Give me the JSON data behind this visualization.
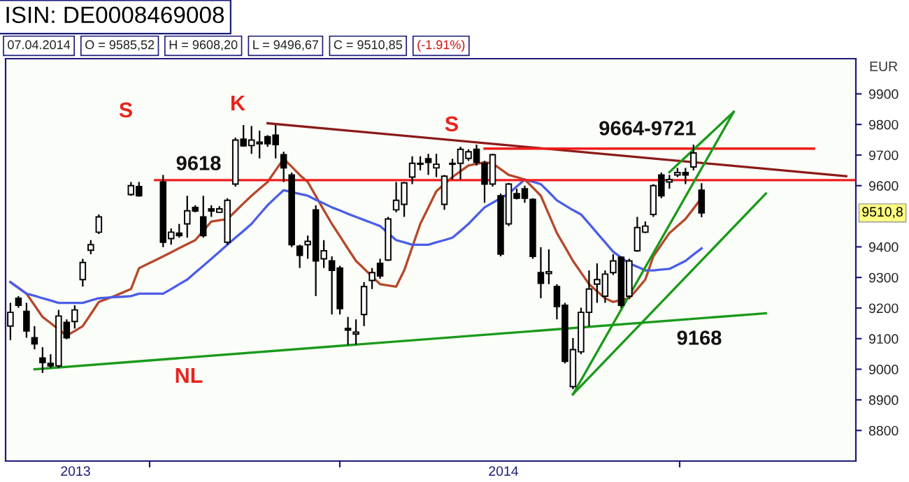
{
  "chart_data": {
    "type": "candlestick",
    "title": "ISIN: DE0008469008",
    "ylabel": "EUR",
    "annotations": [
      "07.04.2014",
      "O = 9585,52",
      "H = 9608,20",
      "L = 9496,67",
      "C = 9510,85",
      "(-1.91%)",
      "S",
      "K",
      "S",
      "9618",
      "9664-9721",
      "9168",
      "NL",
      "2013",
      "2014",
      {
        "text": "9510,8",
        "y": 9510.8
      }
    ],
    "categories": [
      null,
      null,
      null,
      null,
      null,
      null,
      null,
      null,
      null,
      null,
      null,
      null,
      null,
      null,
      null,
      null,
      null,
      null,
      null,
      null,
      null,
      null,
      null,
      null,
      null,
      null,
      null,
      null,
      null,
      null,
      null,
      null,
      null,
      null,
      null,
      null,
      null,
      null,
      null,
      null,
      null,
      null,
      null,
      null,
      null,
      null,
      null,
      null,
      null,
      null,
      null,
      null,
      null,
      null,
      null,
      null,
      null,
      null,
      null,
      null,
      null,
      null,
      null,
      null,
      null,
      null,
      null,
      null,
      null,
      null,
      null,
      null,
      null,
      null,
      null,
      null,
      null,
      null,
      null,
      null,
      null,
      null,
      null,
      null,
      null,
      null,
      null,
      null,
      null,
      null,
      null,
      null,
      null,
      null,
      null,
      null,
      null,
      null,
      null,
      null,
      null,
      null,
      null,
      null,
      null,
      null
    ],
    "ohlc": [
      [
        9141,
        9217,
        9095,
        9186
      ],
      [
        9232,
        9239,
        9201,
        9209
      ],
      [
        9189,
        9217,
        9103,
        9125
      ],
      [
        9103,
        9141,
        9065,
        9083
      ],
      [
        9037,
        9072,
        8988,
        9022
      ],
      [
        9019,
        9049,
        9004,
        9011
      ],
      [
        9011,
        9194,
        9004,
        9174
      ],
      [
        9153,
        9163,
        9098,
        9103
      ],
      [
        9156,
        9209,
        9133,
        9194
      ],
      [
        9293,
        9361,
        9270,
        9349
      ],
      [
        9389,
        9422,
        9376,
        9407
      ],
      [
        9448,
        9506,
        9442,
        9498
      ],
      null,
      null,
      null,
      [
        9571,
        9612,
        9567,
        9600
      ],
      [
        9597,
        9612,
        9564,
        9567
      ],
      null,
      null,
      [
        9612,
        9635,
        9399,
        9415
      ],
      [
        9427,
        9460,
        9407,
        9448
      ],
      [
        9445,
        9475,
        9430,
        9437
      ],
      [
        9475,
        9567,
        9430,
        9518
      ],
      [
        9529,
        9536,
        9513,
        9517
      ],
      [
        9498,
        9567,
        9430,
        9437
      ],
      [
        9524,
        9536,
        9498,
        9517
      ],
      [
        9513,
        9533,
        9513,
        9524
      ],
      [
        9415,
        9559,
        9407,
        9552
      ],
      [
        9605,
        9757,
        9597,
        9749
      ],
      [
        9752,
        9798,
        9727,
        9730
      ],
      [
        9731,
        9795,
        9704,
        9749
      ],
      [
        9737,
        9780,
        9689,
        9742
      ],
      [
        9760,
        9765,
        9727,
        9737
      ],
      [
        9765,
        9798,
        9689,
        9734
      ],
      [
        9701,
        9711,
        9612,
        9658
      ],
      [
        9635,
        9643,
        9399,
        9407
      ],
      [
        9402,
        9407,
        9331,
        9372
      ],
      [
        9407,
        9437,
        9361,
        9418
      ],
      [
        9521,
        9536,
        9239,
        9354
      ],
      [
        9361,
        9422,
        9331,
        9387
      ],
      [
        9354,
        9369,
        9179,
        9323
      ],
      [
        9331,
        9338,
        9179,
        9198
      ],
      [
        9133,
        9171,
        9080,
        9128
      ],
      [
        9115,
        9163,
        9080,
        9121
      ],
      [
        9179,
        9285,
        9141,
        9270
      ],
      [
        9290,
        9331,
        9262,
        9316
      ],
      [
        9346,
        9361,
        9296,
        9305
      ],
      [
        9357,
        9498,
        9354,
        9491
      ],
      [
        9521,
        9612,
        9513,
        9552
      ],
      [
        9539,
        9612,
        9498,
        9609
      ],
      [
        9628,
        9696,
        9605,
        9673
      ],
      [
        9673,
        9696,
        9650,
        9670
      ],
      [
        9688,
        9704,
        9635,
        9676
      ],
      [
        9658,
        9704,
        9628,
        9670
      ],
      [
        9539,
        9635,
        9521,
        9631
      ],
      [
        9673,
        9688,
        9620,
        9670
      ],
      [
        9673,
        9727,
        9620,
        9719
      ],
      [
        9689,
        9719,
        9681,
        9711
      ],
      [
        9719,
        9734,
        9666,
        9676
      ],
      [
        9673,
        9681,
        9544,
        9605
      ],
      [
        9605,
        9704,
        9597,
        9701
      ],
      [
        9567,
        9574,
        9369,
        9376
      ],
      [
        9475,
        9609,
        9468,
        9605
      ],
      [
        9574,
        9590,
        9555,
        9559
      ],
      [
        9590,
        9600,
        9544,
        9559
      ],
      [
        9555,
        9559,
        9361,
        9369
      ],
      [
        9316,
        9399,
        9232,
        9281
      ],
      [
        9313,
        9392,
        9278,
        9319
      ],
      [
        9270,
        9278,
        9163,
        9205
      ],
      [
        9209,
        9217,
        9019,
        9026
      ],
      [
        8943,
        9102,
        8935,
        9064
      ],
      [
        9057,
        9201,
        9049,
        9186
      ],
      [
        9186,
        9323,
        9141,
        9262
      ],
      [
        9278,
        9346,
        9217,
        9293
      ],
      [
        9239,
        9323,
        9217,
        9311
      ],
      [
        9316,
        9376,
        9308,
        9354
      ],
      [
        9366,
        9369,
        9201,
        9209
      ],
      [
        9239,
        9361,
        9232,
        9354
      ],
      [
        9387,
        9498,
        9384,
        9463
      ],
      [
        9448,
        9483,
        9445,
        9468
      ],
      [
        9506,
        9605,
        9498,
        9600
      ],
      [
        9635,
        9643,
        9559,
        9567
      ],
      [
        9612,
        9635,
        9590,
        9620
      ],
      [
        9635,
        9658,
        9628,
        9643
      ],
      [
        9643,
        9658,
        9605,
        9635
      ],
      [
        9661,
        9734,
        9650,
        9707
      ],
      [
        9585.52,
        9608.2,
        9496.67,
        9510.85
      ],
      null,
      null,
      null,
      null,
      null,
      null,
      null,
      null,
      null,
      null,
      null,
      null,
      null,
      null,
      null,
      null,
      null,
      null,
      null
    ],
    "series": [
      {
        "type": "line",
        "color": "#b5482a",
        "values": [
          9285,
          9266,
          9247,
          9209,
          9171,
          9151,
          9130,
          9110,
          9125,
          9141,
          9180,
          9220,
          9230,
          9240,
          9251,
          9262,
          9330,
          9343,
          9356,
          9369,
          9382,
          9396,
          9409,
          9422,
          9452,
          9483,
          9487,
          9491,
          9516,
          9542,
          9567,
          9590,
          9612,
          9650,
          9688,
          9662,
          9635,
          9612,
          9566,
          9520,
          9475,
          9435,
          9394,
          9354,
          9329,
          9303,
          9278,
          9274,
          9270,
          9323,
          9399,
          9475,
          9528,
          9582,
          9605,
          9628,
          9647,
          9666,
          9671,
          9676,
          9673,
          9654,
          9635,
          9628,
          9620,
          9594,
          9567,
          9506,
          9445,
          9400,
          9354,
          9316,
          9278,
          9255,
          9232,
          9220,
          9226,
          9232,
          9262,
          9293,
          9369,
          9407,
          9445,
          9468,
          9491,
          9525,
          9560,
          null,
          null,
          null,
          null,
          null,
          null,
          null,
          null,
          null,
          null,
          null,
          null,
          null,
          null,
          null,
          null,
          null,
          null,
          null
        ]
      },
      {
        "type": "line",
        "color": "#4a5ee8",
        "values": [
          9285,
          9266,
          9247,
          9240,
          9232,
          9225,
          9217,
          9217,
          9217,
          9217,
          9225,
          9232,
          9234,
          9236,
          9237,
          9239,
          9247,
          9247,
          9247,
          9247,
          9262,
          9278,
          9293,
          9316,
          9338,
          9361,
          9384,
          9407,
          9430,
          9452,
          9475,
          9506,
          9536,
          9561,
          9585,
          9579,
          9573,
          9567,
          9554,
          9542,
          9529,
          9519,
          9508,
          9498,
          9488,
          9478,
          9468,
          9445,
          9422,
          9415,
          9407,
          9407,
          9407,
          9415,
          9422,
          9430,
          9452,
          9475,
          9502,
          9529,
          9544,
          9559,
          9574,
          9597,
          9620,
          9613,
          9605,
          9579,
          9552,
          9536,
          9520,
          9506,
          9476,
          9445,
          9415,
          9384,
          9365,
          9346,
          9335,
          9323,
          9323,
          9326,
          9328,
          9341,
          9354,
          9375,
          9395,
          null,
          null,
          null,
          null,
          null,
          null,
          null,
          null,
          null,
          null,
          null,
          null,
          null,
          null,
          null,
          null,
          null,
          null,
          null
        ]
      },
      {
        "type": "line",
        "color": "#1a9a1a",
        "values": [
          null,
          null,
          null,
          9000,
          null,
          null,
          null,
          null,
          null,
          null,
          null,
          null,
          null,
          null,
          null,
          null,
          null,
          null,
          null,
          null,
          null,
          null,
          null,
          null,
          null,
          null,
          null,
          null,
          null,
          null,
          null,
          null,
          null,
          null,
          null,
          null,
          null,
          null,
          null,
          null,
          null,
          null,
          null,
          null,
          null,
          null,
          null,
          null,
          null,
          null,
          null,
          null,
          null,
          null,
          null,
          null,
          null,
          null,
          null,
          null,
          null,
          null,
          null,
          null,
          null,
          null,
          null,
          null,
          null,
          null,
          null,
          null,
          null,
          null,
          null,
          null,
          null,
          null,
          null,
          null,
          null,
          null,
          null,
          null,
          null,
          null,
          null,
          null,
          null,
          null,
          null,
          null,
          null,
          null,
          9183,
          null,
          null,
          null,
          null,
          null,
          null,
          null,
          null,
          null,
          null,
          null
        ]
      },
      {
        "type": "line",
        "color": "#8b1a1a",
        "values": [
          null,
          null,
          null,
          null,
          null,
          null,
          null,
          null,
          null,
          null,
          null,
          null,
          null,
          null,
          null,
          null,
          null,
          null,
          null,
          null,
          null,
          null,
          null,
          null,
          null,
          null,
          null,
          null,
          null,
          null,
          null,
          null,
          9804,
          null,
          null,
          null,
          null,
          null,
          null,
          null,
          null,
          null,
          null,
          null,
          null,
          null,
          null,
          null,
          null,
          null,
          null,
          null,
          null,
          null,
          null,
          null,
          null,
          null,
          null,
          null,
          null,
          null,
          null,
          null,
          null,
          null,
          null,
          null,
          null,
          null,
          null,
          null,
          null,
          null,
          null,
          null,
          null,
          null,
          null,
          null,
          null,
          null,
          null,
          null,
          null,
          null,
          null,
          null,
          null,
          null,
          null,
          null,
          null,
          null,
          null,
          null,
          null,
          null,
          null,
          null,
          null,
          null,
          null,
          null,
          9631,
          null
        ]
      },
      {
        "type": "line",
        "color": "#f01c1c",
        "values": [
          null,
          null,
          null,
          null,
          null,
          null,
          null,
          null,
          null,
          null,
          null,
          null,
          null,
          null,
          null,
          null,
          null,
          null,
          9618,
          null,
          null,
          null,
          null,
          null,
          null,
          null,
          null,
          null,
          null,
          null,
          null,
          null,
          null,
          null,
          null,
          null,
          null,
          null,
          null,
          null,
          null,
          null,
          null,
          null,
          null,
          null,
          null,
          null,
          null,
          null,
          null,
          null,
          null,
          null,
          null,
          null,
          null,
          null,
          null,
          null,
          null,
          null,
          null,
          null,
          null,
          null,
          null,
          null,
          null,
          null,
          null,
          null,
          null,
          null,
          null,
          null,
          null,
          null,
          null,
          null,
          null,
          null,
          null,
          null,
          null,
          null,
          null,
          null,
          null,
          null,
          null,
          null,
          null,
          null,
          null,
          null,
          null,
          null,
          null,
          null,
          null,
          null,
          null,
          null,
          null,
          9618
        ]
      },
      {
        "type": "line",
        "color": "#f01c1c",
        "values": [
          null,
          null,
          null,
          null,
          null,
          null,
          null,
          null,
          null,
          null,
          null,
          null,
          null,
          null,
          null,
          null,
          null,
          null,
          null,
          null,
          null,
          null,
          null,
          null,
          null,
          null,
          null,
          null,
          null,
          null,
          null,
          null,
          null,
          null,
          null,
          null,
          null,
          null,
          null,
          null,
          null,
          null,
          null,
          null,
          null,
          null,
          null,
          null,
          null,
          null,
          null,
          null,
          null,
          null,
          null,
          null,
          null,
          null,
          null,
          9721,
          null,
          null,
          null,
          null,
          null,
          null,
          null,
          null,
          null,
          null,
          null,
          null,
          null,
          null,
          null,
          null,
          null,
          null,
          null,
          null,
          null,
          null,
          null,
          null,
          null,
          null,
          null,
          null,
          null,
          null,
          null,
          null,
          null,
          null,
          null,
          null,
          null,
          null,
          null,
          null,
          9721,
          null,
          null,
          null,
          null,
          null
        ]
      },
      {
        "type": "line",
        "color": "#1a9a1a",
        "values": [
          null,
          null,
          null,
          null,
          null,
          null,
          null,
          null,
          null,
          null,
          null,
          null,
          null,
          null,
          null,
          null,
          null,
          null,
          null,
          null,
          null,
          null,
          null,
          null,
          null,
          null,
          null,
          null,
          null,
          null,
          null,
          null,
          null,
          null,
          null,
          null,
          null,
          null,
          null,
          null,
          null,
          null,
          null,
          null,
          null,
          null,
          null,
          null,
          null,
          null,
          null,
          null,
          null,
          null,
          null,
          null,
          null,
          null,
          null,
          null,
          null,
          null,
          null,
          null,
          null,
          null,
          null,
          null,
          null,
          null,
          8918,
          null,
          null,
          null,
          null,
          null,
          null,
          null,
          null,
          null,
          null,
          null,
          null,
          null,
          null,
          null,
          null,
          null,
          null,
          null,
          9841,
          null,
          null,
          null,
          null,
          null,
          null,
          null,
          null,
          null,
          null,
          null,
          null,
          null,
          null,
          null
        ]
      },
      {
        "type": "line",
        "color": "#1a9a1a",
        "values": [
          null,
          null,
          null,
          null,
          null,
          null,
          null,
          null,
          null,
          null,
          null,
          null,
          null,
          null,
          null,
          null,
          null,
          null,
          null,
          null,
          null,
          null,
          null,
          null,
          null,
          null,
          null,
          null,
          null,
          null,
          null,
          null,
          null,
          null,
          null,
          null,
          null,
          null,
          null,
          null,
          null,
          null,
          null,
          null,
          null,
          null,
          null,
          null,
          null,
          null,
          null,
          null,
          null,
          null,
          null,
          null,
          null,
          null,
          null,
          null,
          null,
          null,
          null,
          null,
          null,
          null,
          null,
          null,
          null,
          null,
          null,
          null,
          null,
          null,
          null,
          null,
          null,
          null,
          null,
          null,
          null,
          null,
          9644,
          null,
          null,
          null,
          null,
          null,
          null,
          null,
          9841,
          null,
          null,
          null,
          null,
          null,
          null,
          null,
          null,
          null,
          null,
          null,
          null,
          null,
          null,
          null
        ]
      },
      {
        "type": "line",
        "color": "#1a9a1a",
        "values": [
          null,
          null,
          null,
          null,
          null,
          null,
          null,
          null,
          null,
          null,
          null,
          null,
          null,
          null,
          null,
          null,
          null,
          null,
          null,
          null,
          null,
          null,
          null,
          null,
          null,
          null,
          null,
          null,
          null,
          null,
          null,
          null,
          null,
          null,
          null,
          null,
          null,
          null,
          null,
          null,
          null,
          null,
          null,
          null,
          null,
          null,
          null,
          null,
          null,
          null,
          null,
          null,
          null,
          null,
          null,
          null,
          null,
          null,
          null,
          null,
          null,
          null,
          null,
          null,
          null,
          null,
          null,
          null,
          null,
          null,
          8918,
          null,
          null,
          null,
          null,
          null,
          null,
          null,
          null,
          null,
          null,
          null,
          null,
          null,
          null,
          null,
          null,
          null,
          null,
          null,
          null,
          null,
          null,
          null,
          9574,
          null,
          null,
          null,
          null,
          null,
          null,
          null,
          null,
          null,
          null,
          null
        ]
      }
    ],
    "ylim": [
      8700,
      10015
    ],
    "yticks": [
      8800,
      8900,
      9000,
      9100,
      9200,
      9300,
      9400,
      9600,
      9700,
      9800,
      9900
    ]
  }
}
